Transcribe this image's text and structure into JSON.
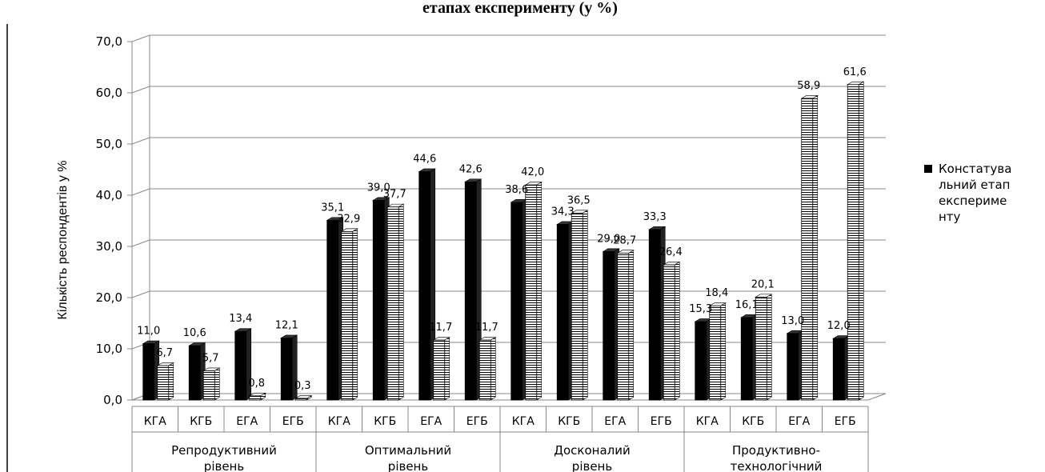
{
  "chart_data": {
    "type": "bar",
    "title_visible_fragment": "етапах експерименту (у %)",
    "ylabel": "Кількість респондентів у %",
    "ylim": [
      0,
      70
    ],
    "yticks": [
      "0,0",
      "10,0",
      "20,0",
      "30,0",
      "40,0",
      "50,0",
      "60,0",
      "70,0"
    ],
    "ytick_values": [
      0,
      10,
      20,
      30,
      40,
      50,
      60,
      70
    ],
    "groups": [
      {
        "label_lines": [
          "Репродуктивний",
          "рівень"
        ],
        "categories": [
          "КГА",
          "КГБ",
          "ЕГА",
          "ЕГБ"
        ]
      },
      {
        "label_lines": [
          "Оптимальний",
          "рівень"
        ],
        "categories": [
          "КГА",
          "КГБ",
          "ЕГА",
          "ЕГБ"
        ]
      },
      {
        "label_lines": [
          "Досконалий",
          "рівень"
        ],
        "categories": [
          "КГА",
          "КГБ",
          "ЕГА",
          "ЕГБ"
        ]
      },
      {
        "label_lines": [
          "Продуктивно-",
          "технологічний"
        ],
        "categories": [
          "КГА",
          "КГБ",
          "ЕГА",
          "ЕГБ"
        ]
      }
    ],
    "series": [
      {
        "legend_lines": [
          "Констатува",
          "льний етап",
          "експериме",
          "нту"
        ],
        "style": "solid",
        "color": "#000000",
        "values": [
          11.0,
          10.6,
          13.4,
          12.1,
          35.1,
          39.0,
          44.6,
          42.6,
          38.6,
          34.3,
          29.0,
          33.3,
          15.3,
          16.1,
          13.0,
          12.0
        ],
        "labels": [
          "11,0",
          "10,6",
          "13,4",
          "12,1",
          "35,1",
          "39,0",
          "44,6",
          "42,6",
          "38,6",
          "34,3",
          "29,0",
          "33,3",
          "15,3",
          "16,1",
          "13,0",
          "12,0"
        ]
      },
      {
        "style": "horizontal-stripes",
        "color": "#ffffff",
        "values": [
          6.7,
          5.7,
          0.8,
          0.3,
          32.9,
          37.7,
          11.7,
          11.7,
          42.0,
          36.5,
          28.7,
          26.4,
          18.4,
          20.1,
          58.9,
          61.6
        ],
        "labels": [
          "6,7",
          "5,7",
          "0,8",
          "0,3",
          "32,9",
          "37,7",
          "11,7",
          "11,7",
          "42,0",
          "36,5",
          "28,7",
          "26,4",
          "18,4",
          "20,1",
          "58,9",
          "61,6"
        ]
      }
    ],
    "grid": true,
    "legend_position": "right"
  }
}
